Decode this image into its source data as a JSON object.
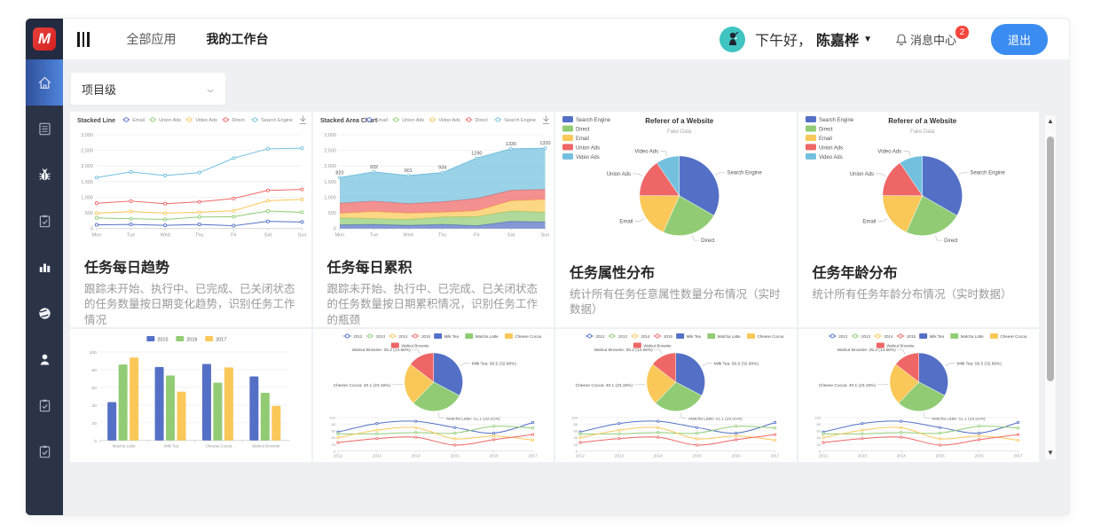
{
  "header": {
    "logo_text": "M",
    "nav": [
      {
        "label": "全部应用",
        "active": false
      },
      {
        "label": "我的工作台",
        "active": true
      }
    ],
    "greeting_prefix": "下午好，",
    "user_name": "陈嘉桦",
    "message_center_label": "消息中心",
    "message_badge": "2",
    "logout_label": "退出"
  },
  "sidebar": {
    "items": [
      {
        "icon": "home-icon",
        "active": true
      },
      {
        "icon": "document-icon",
        "active": false
      },
      {
        "icon": "bug-icon",
        "active": false
      },
      {
        "icon": "clipboard-check-icon",
        "active": false
      },
      {
        "icon": "bar-chart-icon",
        "active": false
      },
      {
        "icon": "globe-icon",
        "active": false
      },
      {
        "icon": "user-icon",
        "active": false
      },
      {
        "icon": "clipboard-check-icon",
        "active": false
      },
      {
        "icon": "clipboard-check-icon",
        "active": false
      }
    ]
  },
  "filter": {
    "value": "项目级"
  },
  "cards": [
    {
      "title": "任务每日趋势",
      "description": "跟踪未开始、执行中、已完成、已关闭状态的任务数量按日期变化趋势，识别任务工作情况",
      "chart": "stacked_line"
    },
    {
      "title": "任务每日累积",
      "description": "跟踪未开始、执行中、已完成、已关闭状态的任务数量按日期累积情况，识别任务工作的瓶颈",
      "chart": "stacked_area"
    },
    {
      "title": "任务属性分布",
      "description": "统计所有任务任意属性数量分布情况（实时数据）",
      "chart": "referer_pie"
    },
    {
      "title": "任务年龄分布",
      "description": "统计所有任务年龄分布情况（实时数据）",
      "chart": "referer_pie"
    },
    {
      "chart": "grouped_bar"
    },
    {
      "chart": "pie_line_combo"
    },
    {
      "chart": "pie_line_combo"
    },
    {
      "chart": "pie_line_combo"
    }
  ],
  "chart_data": {
    "palette": [
      "#5470c6",
      "#91cc75",
      "#fac858",
      "#ee6666",
      "#73c0de"
    ],
    "stacked_line": {
      "type": "line",
      "title": "Stacked Line",
      "stacked": true,
      "x": [
        "Mon",
        "Tue",
        "Wed",
        "Thu",
        "Fri",
        "Sat",
        "Sun"
      ],
      "series": [
        {
          "name": "Email",
          "values": [
            120,
            132,
            101,
            134,
            90,
            230,
            210
          ]
        },
        {
          "name": "Union Ads",
          "values": [
            220,
            182,
            191,
            234,
            290,
            330,
            310
          ]
        },
        {
          "name": "Video Ads",
          "values": [
            150,
            232,
            201,
            154,
            190,
            330,
            410
          ]
        },
        {
          "name": "Direct",
          "values": [
            320,
            332,
            301,
            334,
            390,
            330,
            320
          ]
        },
        {
          "name": "Search Engine",
          "values": [
            820,
            932,
            901,
            934,
            1290,
            1330,
            1320
          ]
        }
      ],
      "ylim": [
        0,
        3000
      ],
      "yticks": [
        0,
        500,
        1000,
        1500,
        2000,
        2500,
        3000
      ],
      "legend_position": "top",
      "grid": true
    },
    "stacked_area": {
      "type": "area",
      "title": "Stacked Area Chart",
      "stacked": true,
      "x": [
        "Mon",
        "Tue",
        "Wed",
        "Thu",
        "Fri",
        "Sat",
        "Sun"
      ],
      "series": [
        {
          "name": "Email",
          "values": [
            120,
            132,
            101,
            134,
            90,
            230,
            210
          ]
        },
        {
          "name": "Union Ads",
          "values": [
            220,
            182,
            191,
            234,
            290,
            330,
            310
          ]
        },
        {
          "name": "Video Ads",
          "values": [
            150,
            232,
            201,
            154,
            190,
            330,
            410
          ]
        },
        {
          "name": "Direct",
          "values": [
            320,
            332,
            301,
            334,
            390,
            330,
            320
          ]
        },
        {
          "name": "Search Engine",
          "values": [
            820,
            932,
            901,
            934,
            1290,
            1330,
            1320
          ]
        }
      ],
      "top_labels": [
        820,
        932,
        901,
        934,
        1290,
        1330,
        1320
      ],
      "ylim": [
        0,
        3000
      ],
      "yticks": [
        0,
        500,
        1000,
        1500,
        2000,
        2500,
        3000
      ],
      "legend_position": "top",
      "grid": true
    },
    "referer_pie": {
      "type": "pie",
      "title": "Referer of a Website",
      "subtitle": "Fake Data",
      "legend_position": "left",
      "slices": [
        {
          "name": "Search Engine",
          "value": 1048
        },
        {
          "name": "Direct",
          "value": 735
        },
        {
          "name": "Email",
          "value": 580
        },
        {
          "name": "Union Ads",
          "value": 484
        },
        {
          "name": "Video Ads",
          "value": 300
        }
      ]
    },
    "grouped_bar": {
      "type": "bar",
      "categories": [
        "Matcha Latte",
        "Milk Tea",
        "Cheese Cocoa",
        "Walnut Brownie"
      ],
      "series": [
        {
          "name": "2015",
          "values": [
            43.3,
            83.1,
            86.4,
            72.4
          ]
        },
        {
          "name": "2016",
          "values": [
            85.8,
            73.4,
            65.2,
            53.9
          ]
        },
        {
          "name": "2017",
          "values": [
            93.7,
            55.1,
            82.5,
            39.1
          ]
        }
      ],
      "ylim": [
        0,
        100
      ],
      "yticks": [
        0,
        20,
        40,
        60,
        80,
        100
      ],
      "legend_position": "top",
      "grid": true
    },
    "pie_line_combo": {
      "type": "combo",
      "legend_line": [
        "2012",
        "2013",
        "2014",
        "2015"
      ],
      "legend_rect": [
        "Milk Tea",
        "Matcha Latte",
        "Cheese Cocoa",
        "Walnut Brownie"
      ],
      "pie": {
        "slices": [
          {
            "name": "Milk Tea",
            "value": 56.5,
            "label": "Milk Tea: 56.5 (32.68%)"
          },
          {
            "name": "Matcha Latte",
            "value": 51.1,
            "label": "Matcha Latte: 51.1 (29.55%)"
          },
          {
            "name": "Cheese Cocoa",
            "value": 40.1,
            "label": "Cheese Cocoa: 40.1 (23.19%)"
          },
          {
            "name": "Walnut Brownie",
            "value": 25.2,
            "label": "Walnut Brownie: 25.2 (14.58%)"
          }
        ]
      },
      "line": {
        "x": [
          "2012",
          "2013",
          "2014",
          "2015",
          "2016",
          "2017"
        ],
        "series": [
          {
            "name": "Milk Tea",
            "values": [
              56.5,
              82.1,
              88.7,
              70.1,
              53.4,
              85.1
            ]
          },
          {
            "name": "Matcha Latte",
            "values": [
              51.1,
              51.4,
              55.1,
              53.3,
              73.8,
              68.7
            ]
          },
          {
            "name": "Cheese Cocoa",
            "values": [
              40.1,
              62.2,
              69.5,
              36.4,
              45.2,
              32.5
            ]
          },
          {
            "name": "Walnut Brownie",
            "values": [
              25.2,
              37.1,
              41.2,
              18,
              33.9,
              49.1
            ]
          }
        ],
        "ylim": [
          0,
          100
        ],
        "yticks": [
          0,
          20,
          40,
          60,
          80,
          100
        ]
      }
    }
  }
}
